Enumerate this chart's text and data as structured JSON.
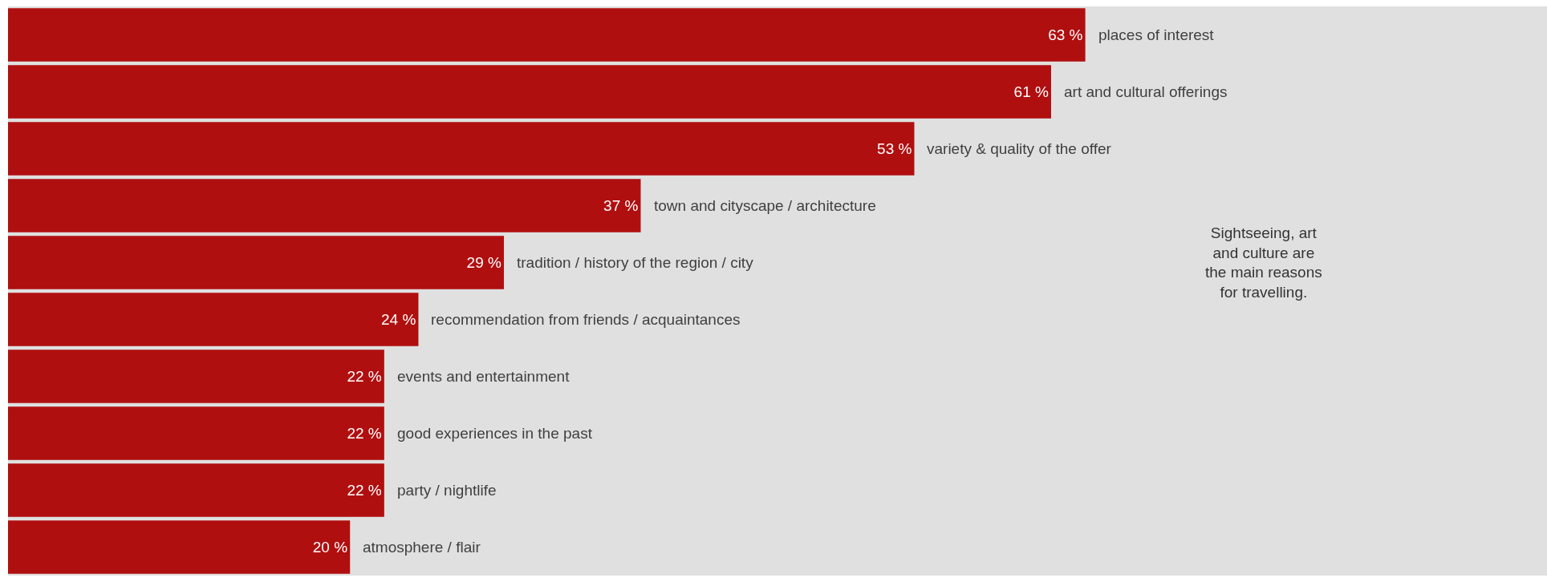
{
  "chart_data": {
    "type": "bar",
    "orientation": "horizontal",
    "categories": [
      "places of interest",
      "art and cultural offerings",
      "variety & quality of the offer",
      "town and cityscape / architecture",
      "tradition / history of the region / city",
      "recommendation from friends / acquaintances",
      "events and entertainment",
      "good experiences in the past",
      "party / nightlife",
      "atmosphere / flair"
    ],
    "values": [
      63,
      61,
      53,
      37,
      29,
      24,
      22,
      22,
      22,
      20
    ],
    "value_labels": [
      "63 %",
      "61 %",
      "53 %",
      "37 %",
      "29 %",
      "24 %",
      "22 %",
      "22 %",
      "22 %",
      "20 %"
    ],
    "color": "#b00f10",
    "xlim": [
      0,
      90
    ],
    "bands": [
      {
        "axis": "x",
        "from": 0,
        "to": 90,
        "color": "#e0e0e0"
      }
    ],
    "tick_labels": false,
    "grid": false,
    "annotations": [
      "Sightseeing, art\nand culture are\nthe main reasons\nfor travelling."
    ]
  }
}
